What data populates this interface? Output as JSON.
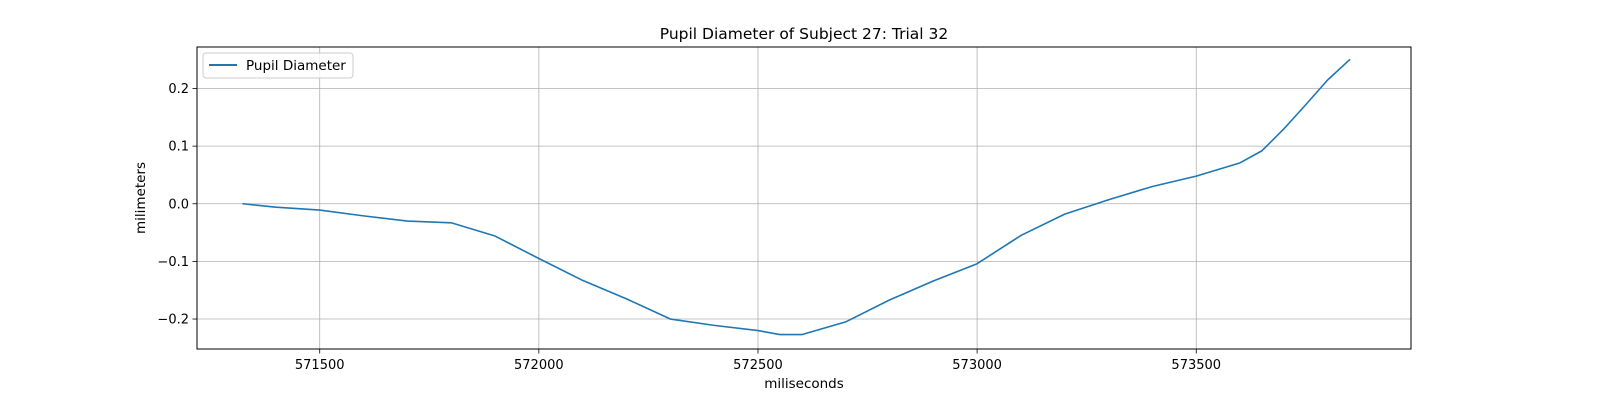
{
  "chart_data": {
    "type": "line",
    "title": "Pupil Diameter of Subject 27: Trial 32",
    "xlabel": "miliseconds",
    "ylabel": "milimeters",
    "xlim": [
      571220,
      573990
    ],
    "ylim": [
      -0.252,
      0.272
    ],
    "xticks": [
      571500,
      572000,
      572500,
      573000,
      573500
    ],
    "xtick_labels": [
      "571500",
      "572000",
      "572500",
      "573000",
      "573500"
    ],
    "yticks": [
      -0.2,
      -0.1,
      0.0,
      0.1,
      0.2
    ],
    "ytick_labels": [
      "−0.2",
      "−0.1",
      "0.0",
      "0.1",
      "0.2"
    ],
    "grid": true,
    "legend_position": "top-left",
    "series": [
      {
        "name": "Pupil Diameter",
        "color": "#1f77b4",
        "x": [
          571325,
          571400,
          571500,
          571600,
          571700,
          571800,
          571900,
          572000,
          572100,
          572200,
          572300,
          572400,
          572500,
          572550,
          572600,
          572700,
          572800,
          572900,
          573000,
          573100,
          573200,
          573300,
          573400,
          573500,
          573600,
          573650,
          573700,
          573750,
          573800,
          573850
        ],
        "y": [
          0.0,
          -0.006,
          -0.011,
          -0.021,
          -0.03,
          -0.033,
          -0.056,
          -0.095,
          -0.133,
          -0.165,
          -0.2,
          -0.211,
          -0.22,
          -0.227,
          -0.227,
          -0.205,
          -0.167,
          -0.134,
          -0.104,
          -0.055,
          -0.018,
          0.007,
          0.03,
          0.048,
          0.071,
          0.092,
          0.13,
          0.172,
          0.215,
          0.25
        ]
      }
    ]
  }
}
